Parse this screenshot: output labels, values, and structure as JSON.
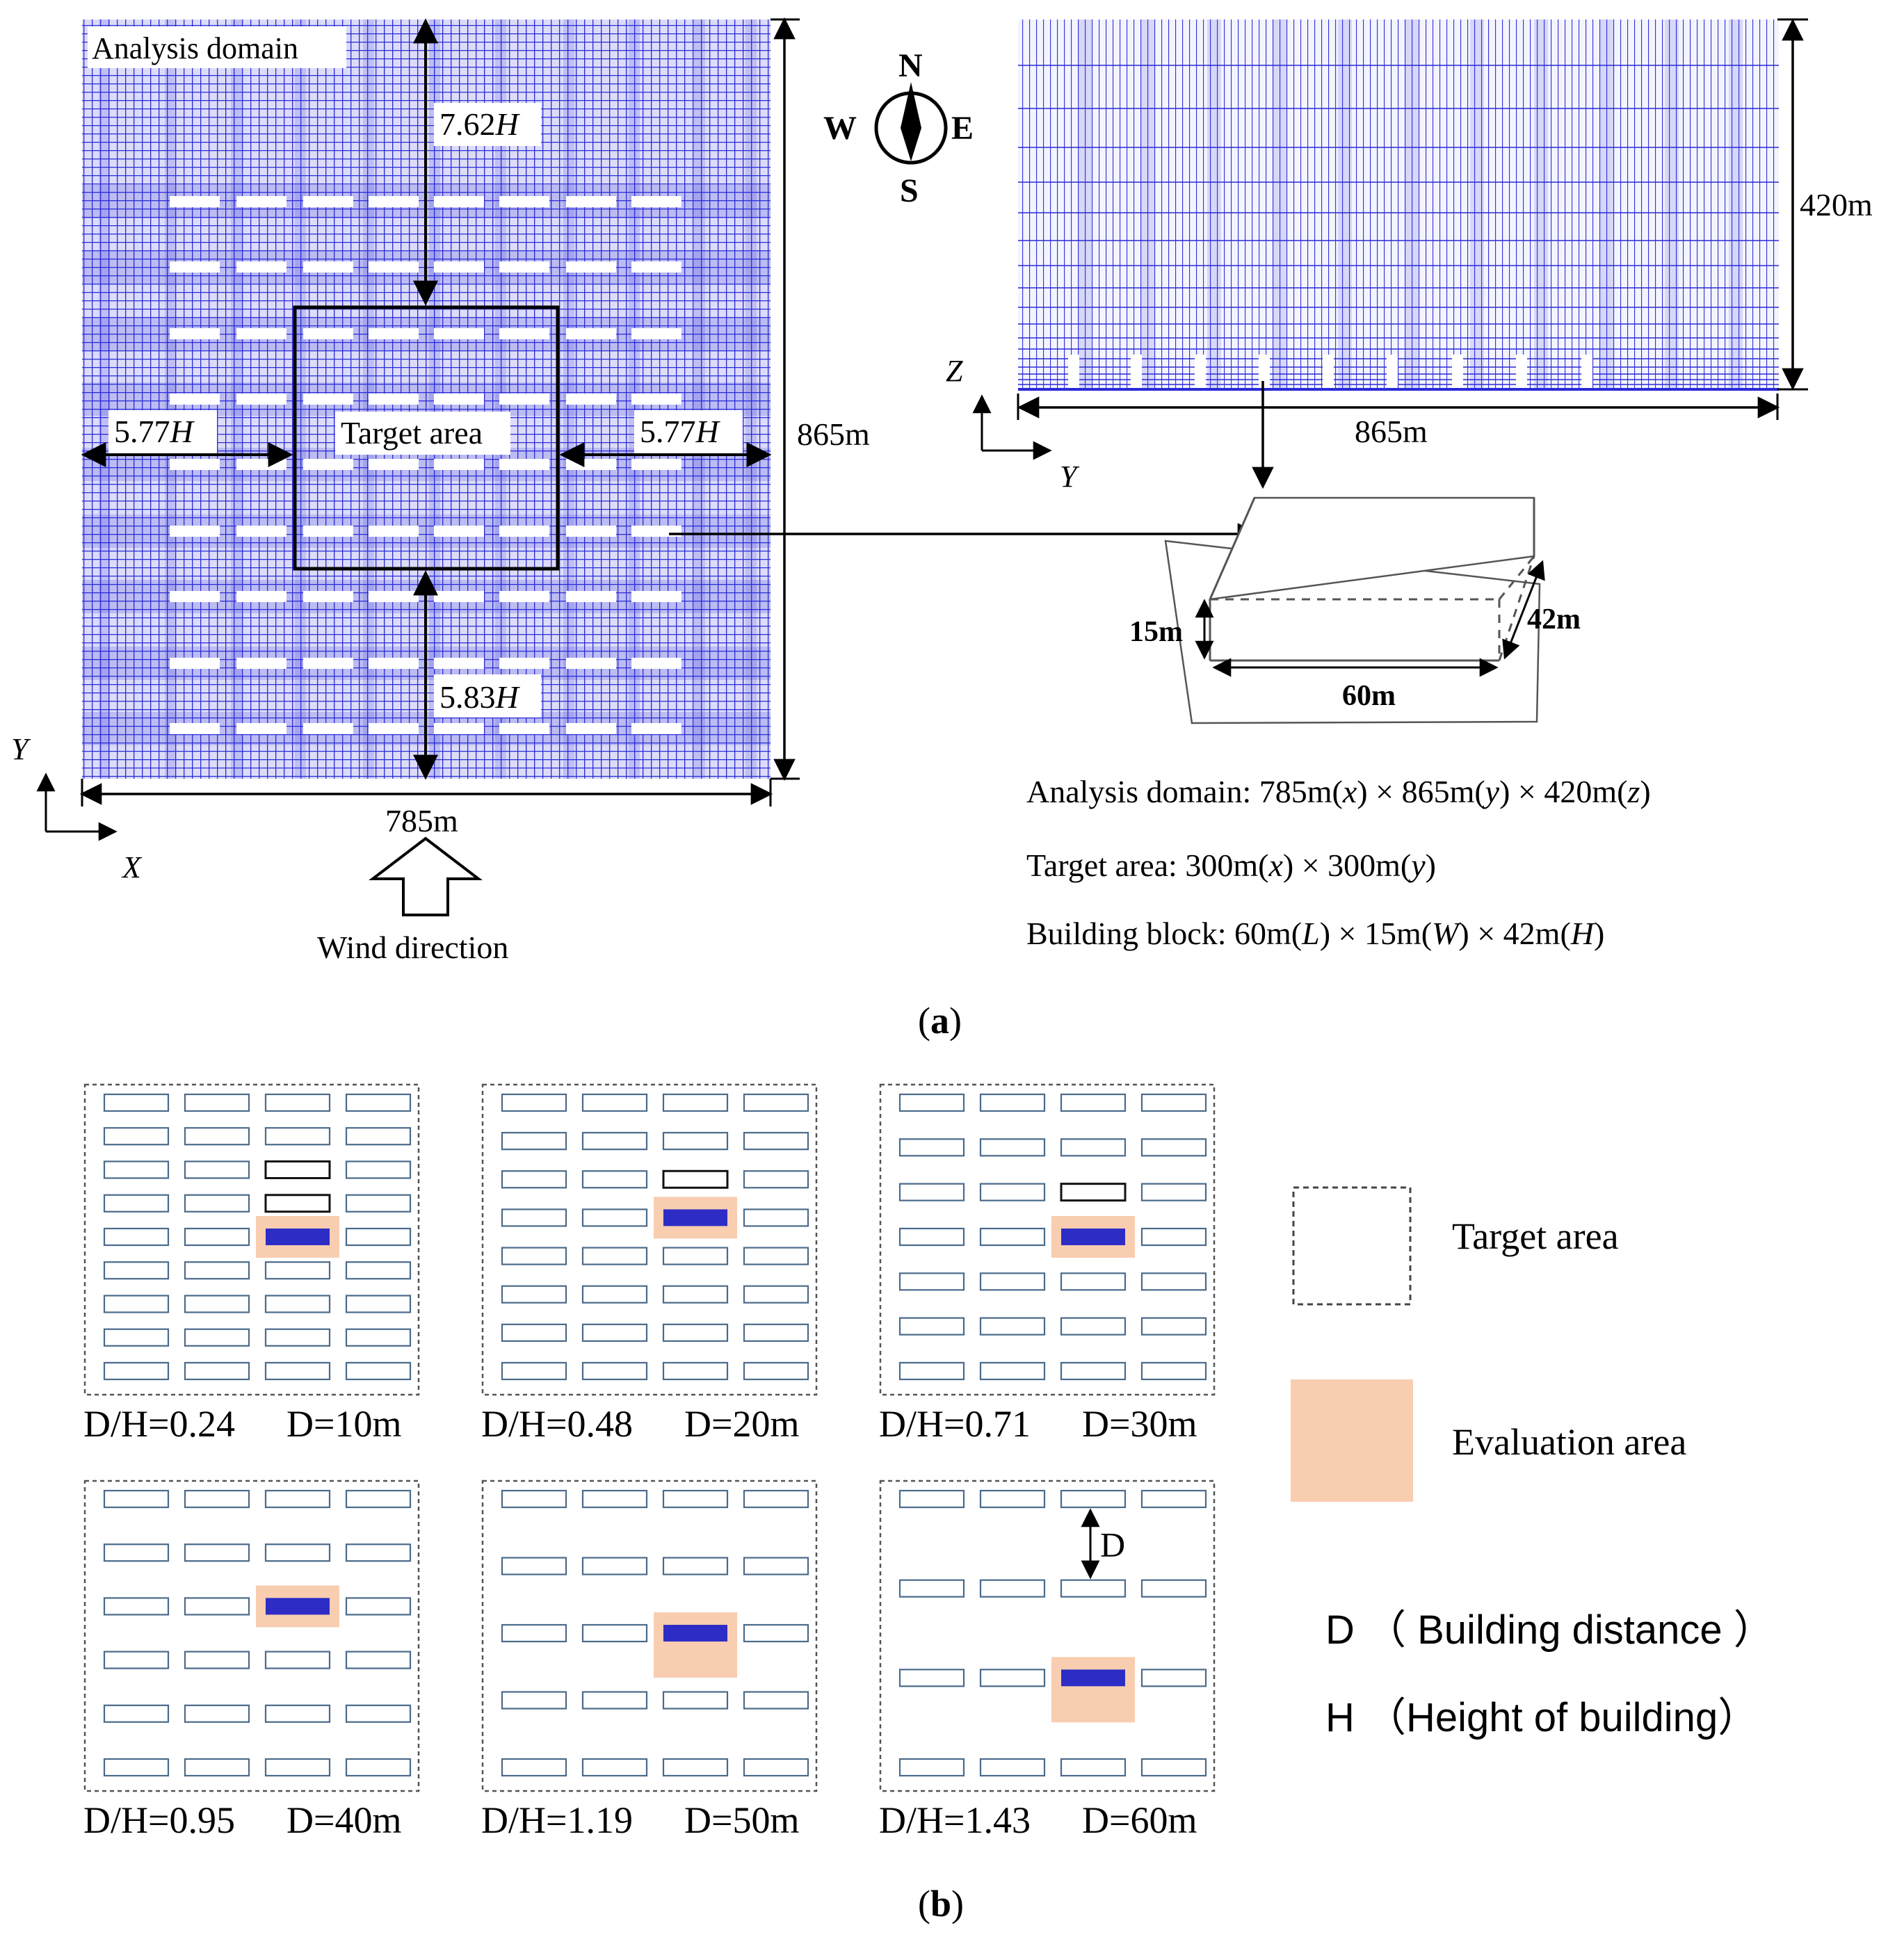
{
  "panel_a": {
    "label": "a",
    "plan_view": {
      "title": "Analysis domain",
      "target_label": "Target area",
      "dim_top": "7.62",
      "dim_bottom": "5.83",
      "dim_left": "5.77",
      "dim_right": "5.77",
      "dim_unit_symbol": "H",
      "height_label": "865m",
      "width_label": "785m",
      "axis_y": "Y",
      "axis_x": "X",
      "wind_label": "Wind direction"
    },
    "compass": {
      "n": "N",
      "s": "S",
      "e": "E",
      "w": "W"
    },
    "section_view": {
      "height_label": "420m",
      "width_label": "865m",
      "axis_z": "Z",
      "axis_y": "Y"
    },
    "block_detail": {
      "dim_w": "15m",
      "dim_h": "42m",
      "dim_l": "60m"
    },
    "specs": [
      {
        "name": "Analysis domain: ",
        "v1": "785m",
        "a1": "x",
        "v2": "865m",
        "a2": "y",
        "v3": "420m",
        "a3": "z"
      },
      {
        "name": "Target area: ",
        "v1": "300m",
        "a1": "x",
        "v2": "300m",
        "a2": "y"
      },
      {
        "name": "Building block: ",
        "v1": "60m",
        "a1": "L",
        "v2": "15m",
        "a2": "W",
        "v3": "42m",
        "a3": "H"
      }
    ]
  },
  "panel_b": {
    "label": "b",
    "cases": [
      {
        "ratio": "D/H=0.24",
        "dist": "D=10m",
        "rows": 9,
        "eval_row": 4,
        "outline_rows": [
          2,
          3
        ]
      },
      {
        "ratio": "D/H=0.48",
        "dist": "D=20m",
        "rows": 8,
        "eval_row": 3,
        "outline_rows": [
          2
        ]
      },
      {
        "ratio": "D/H=0.71",
        "dist": "D=30m",
        "rows": 7,
        "eval_row": 3,
        "outline_rows": [
          2
        ]
      },
      {
        "ratio": "D/H=0.95",
        "dist": "D=40m",
        "rows": 6,
        "eval_row": 2,
        "outline_rows": []
      },
      {
        "ratio": "D/H=1.19",
        "dist": "D=50m",
        "rows": 5,
        "eval_row": 2,
        "outline_rows": []
      },
      {
        "ratio": "D/H=1.43",
        "dist": "D=60m",
        "rows": 4,
        "eval_row": 2,
        "outline_rows": [],
        "d_marker": "D"
      }
    ],
    "legend": {
      "target": "Target area",
      "evaluation": "Evaluation area",
      "d_def": "D （ Building distance ）",
      "h_def": "H （Height of building）"
    }
  },
  "colors": {
    "mesh": "#2a2ad8",
    "mesh_fill": "#d8d8f6",
    "eval_fill": "#f8cdb0",
    "eval_block": "#2d2dc6"
  }
}
